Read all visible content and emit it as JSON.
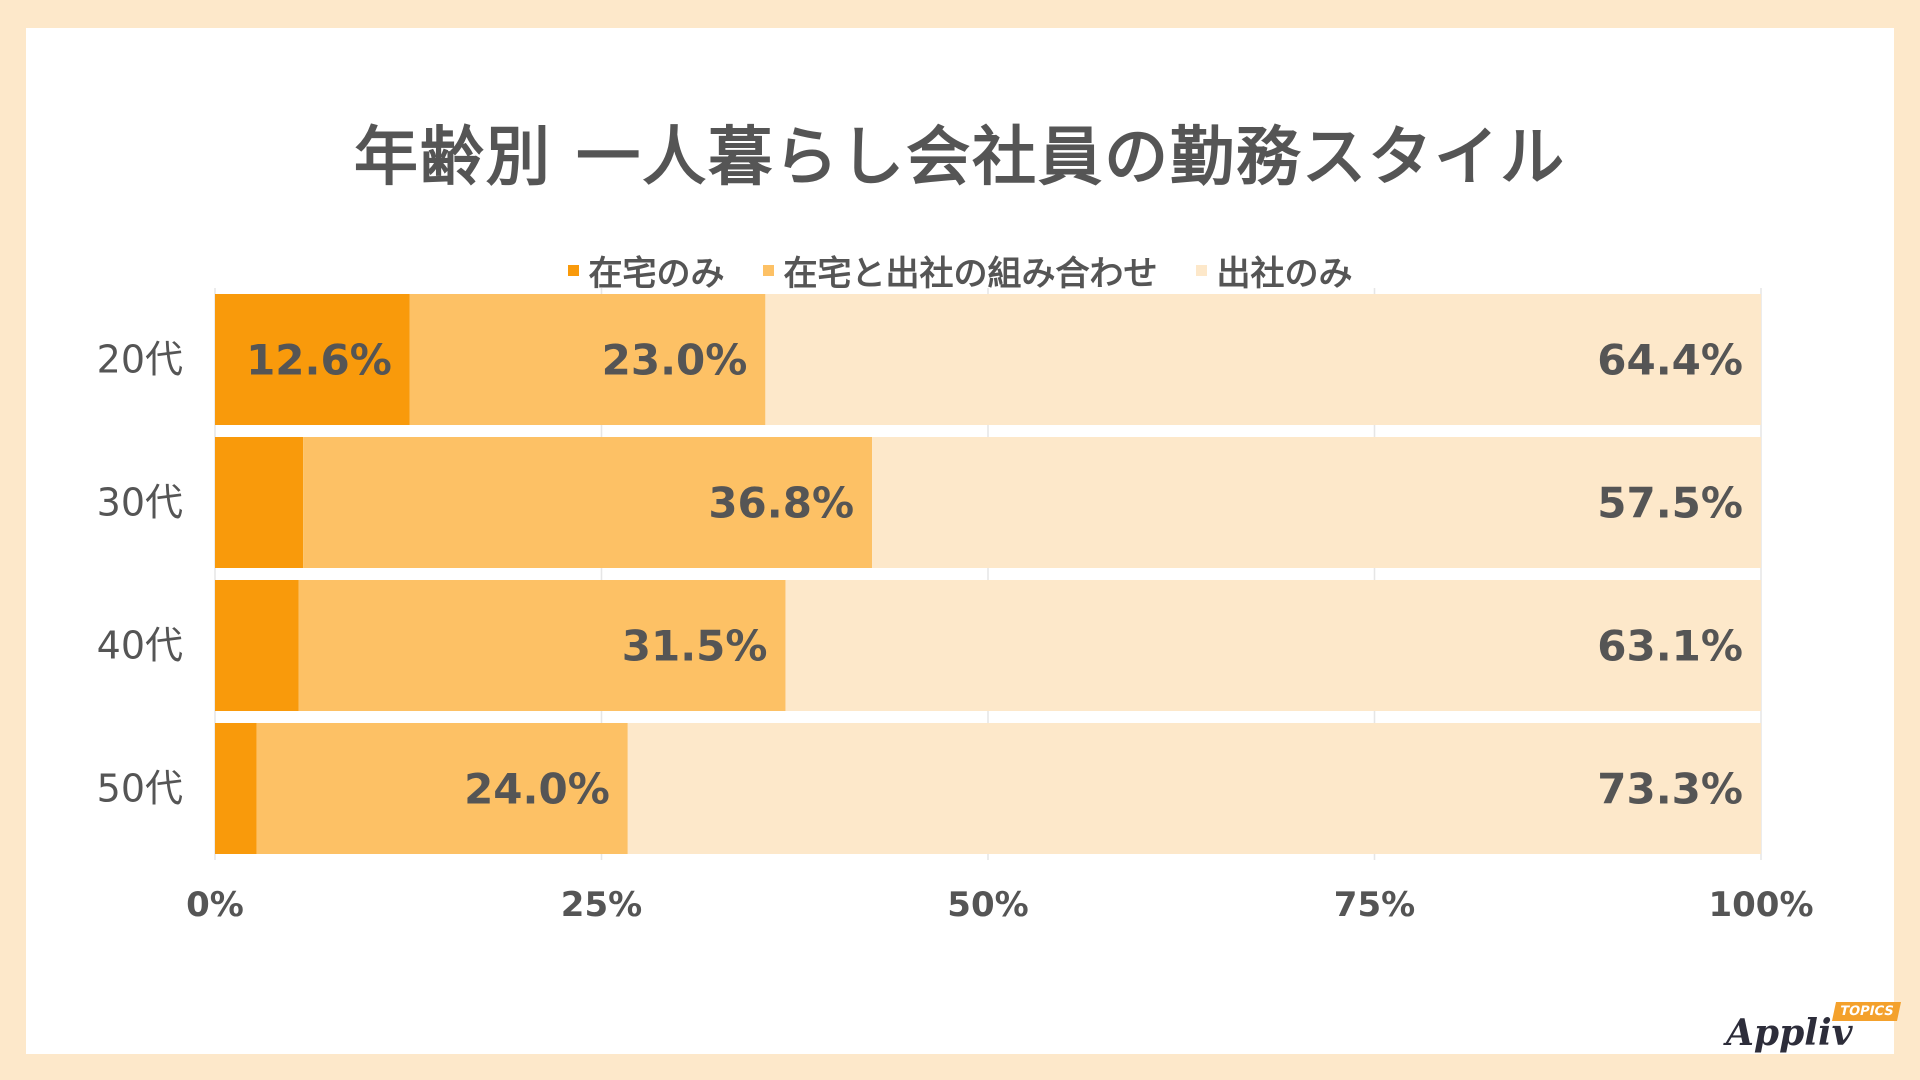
{
  "title": "年齢別 一人暮らし会社員の勤務スタイル",
  "logo": {
    "name": "Appliv",
    "badge": "TOPICS"
  },
  "colors": {
    "series1": "#f99a0b",
    "series2": "#fdc165",
    "series3": "#fde8ca",
    "text": "#555555",
    "grid": "#e6e6e6"
  },
  "chart_data": {
    "type": "bar",
    "orientation": "horizontal",
    "stacked": true,
    "percent": true,
    "title": "年齢別 一人暮らし会社員の勤務スタイル",
    "categories": [
      "20代",
      "30代",
      "40代",
      "50代"
    ],
    "series": [
      {
        "name": "在宅のみ",
        "values": [
          12.6,
          5.7,
          5.4,
          2.7
        ],
        "labels": [
          "12.6%",
          "",
          "",
          ""
        ]
      },
      {
        "name": "在宅と出社の組み合わせ",
        "values": [
          23.0,
          36.8,
          31.5,
          24.0
        ],
        "labels": [
          "23.0%",
          "36.8%",
          "31.5%",
          "24.0%"
        ]
      },
      {
        "name": "出社のみ",
        "values": [
          64.4,
          57.5,
          63.1,
          73.3
        ],
        "labels": [
          "64.4%",
          "57.5%",
          "63.1%",
          "73.3%"
        ]
      }
    ],
    "xlim": [
      0,
      100
    ],
    "xticks": [
      "0%",
      "25%",
      "50%",
      "75%",
      "100%"
    ],
    "grid": true,
    "legend_position": "top"
  }
}
